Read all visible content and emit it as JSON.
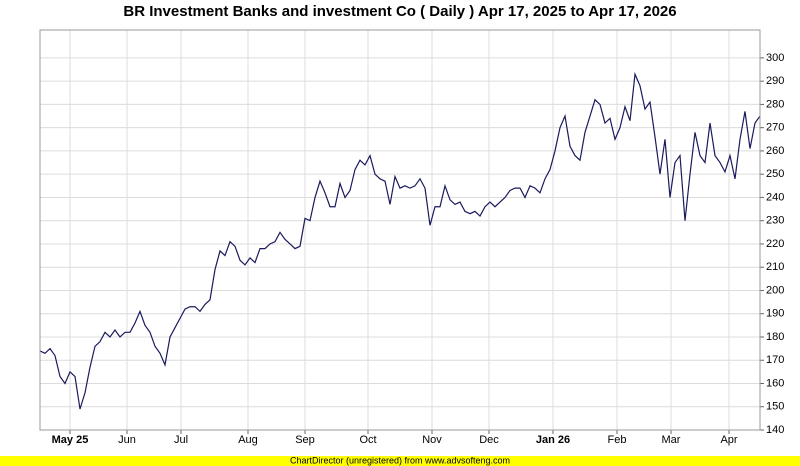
{
  "chart_data": {
    "type": "line",
    "title": "BR Investment Banks and investment Co ( Daily ) Apr 17, 2025 to Apr 17, 2026",
    "footer": "ChartDirector (unregistered) from www.advsofteng.com",
    "color": "#1a1a5e",
    "grid": true,
    "xlim": [
      0,
      144
    ],
    "xticks": [
      {
        "value": 6,
        "label": "May 25"
      },
      {
        "value": 17.4,
        "label": "Jun"
      },
      {
        "value": 28.2,
        "label": "Jul"
      },
      {
        "value": 41.6,
        "label": "Aug"
      },
      {
        "value": 53,
        "label": "Sep"
      },
      {
        "value": 65.6,
        "label": "Oct"
      },
      {
        "value": 78.4,
        "label": "Nov"
      },
      {
        "value": 89.8,
        "label": "Dec"
      },
      {
        "value": 102.6,
        "label": "Jan 26"
      },
      {
        "value": 115.4,
        "label": "Feb"
      },
      {
        "value": 126.2,
        "label": "Mar"
      },
      {
        "value": 137.8,
        "label": "Apr"
      }
    ],
    "ylim": [
      140,
      312
    ],
    "yticks": [
      140,
      150,
      160,
      170,
      180,
      190,
      200,
      210,
      220,
      230,
      240,
      250,
      260,
      270,
      280,
      290,
      300
    ],
    "values": [
      174,
      173,
      175,
      172,
      163,
      160,
      165,
      163,
      149,
      156,
      167,
      176,
      178,
      182,
      180,
      183,
      180,
      182,
      182,
      186,
      191,
      185,
      182,
      176,
      173,
      168,
      180,
      184,
      188,
      192,
      193,
      193,
      191,
      194,
      196,
      209,
      217,
      215,
      221,
      219,
      213,
      211,
      214,
      212,
      218,
      218,
      220,
      221,
      225,
      222,
      220,
      218,
      219,
      231,
      230,
      240,
      247,
      242,
      236,
      236,
      246,
      240,
      243,
      252,
      256,
      254,
      258,
      250,
      248,
      247,
      237,
      249,
      244,
      245,
      244,
      245,
      248,
      244,
      228,
      236,
      236,
      245,
      239,
      237,
      238,
      234,
      233,
      234,
      232,
      236,
      238,
      236,
      238,
      240,
      243,
      244,
      244,
      240,
      245,
      244,
      242,
      248,
      252,
      260,
      270,
      275,
      262,
      258,
      256,
      268,
      275,
      282,
      280,
      272,
      274,
      265,
      270,
      279,
      273,
      293,
      288,
      278,
      281,
      266,
      250,
      265,
      240,
      255,
      258,
      230,
      250,
      268,
      258,
      255,
      272,
      258,
      255,
      251,
      258,
      248,
      265,
      277,
      261,
      272,
      275
    ]
  }
}
